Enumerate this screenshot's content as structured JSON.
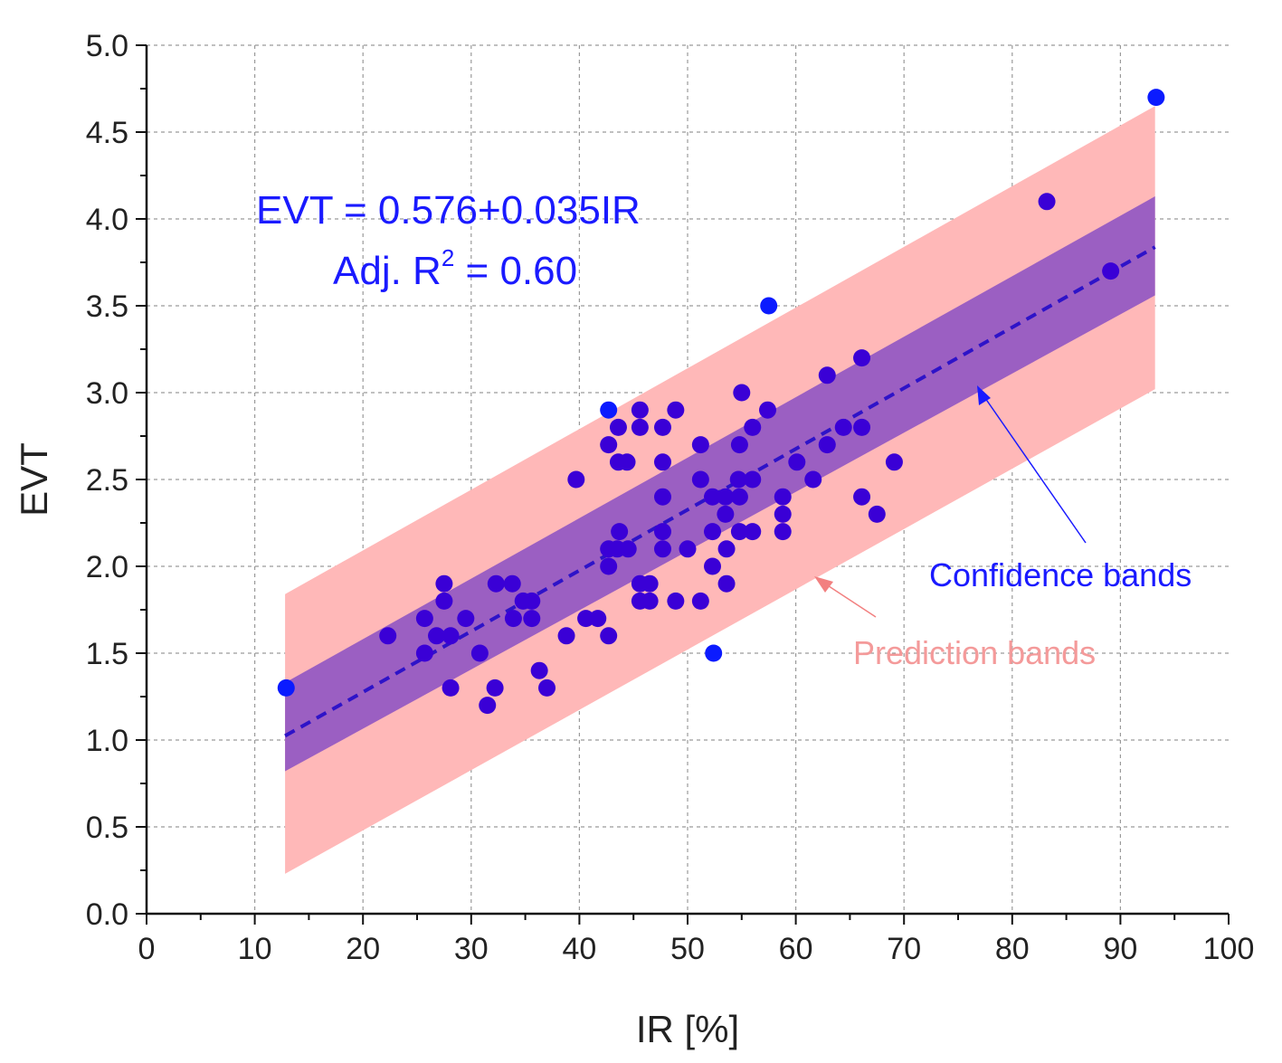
{
  "chart_data": {
    "type": "scatter",
    "xlabel": "IR [%]",
    "ylabel": "EVT",
    "xlim": [
      0,
      100
    ],
    "ylim": [
      0.0,
      5.0
    ],
    "x_ticks": [
      "0",
      "10",
      "20",
      "30",
      "40",
      "50",
      "60",
      "70",
      "80",
      "90",
      "100"
    ],
    "y_ticks": [
      "0.0",
      "0.5",
      "1.0",
      "1.5",
      "2.0",
      "2.5",
      "3.0",
      "3.5",
      "4.0",
      "4.5",
      "5.0"
    ],
    "grid": true,
    "colors": {
      "points": "#3a00d6",
      "outliers": "#0b1bff",
      "fit_line": "#2e13c8",
      "confidence_band": "#9b5fc2",
      "prediction_band": "#ffb8b8",
      "confidence_label": "#1a1aff",
      "prediction_label": "#f49a9a"
    },
    "fit": {
      "intercept": 0.576,
      "slope": 0.035,
      "x_range": [
        12.8,
        93.2
      ],
      "confidence_band": {
        "x": [
          12.8,
          93.2
        ],
        "lower": [
          0.82,
          3.56
        ],
        "upper": [
          1.33,
          4.13
        ]
      },
      "prediction_band": {
        "x": [
          12.8,
          93.2
        ],
        "lower": [
          0.23,
          3.02
        ],
        "upper": [
          1.84,
          4.65
        ]
      }
    },
    "equation": {
      "line1": "EVT = 0.576+0.035IR",
      "line2_prefix": "Adj. R",
      "line2_sup": "2",
      "line2_suffix": " = 0.60"
    },
    "annotations": {
      "confidence": "Confidence bands",
      "prediction": "Prediction bands"
    },
    "points": [
      [
        22.3,
        1.6
      ],
      [
        25.7,
        1.7
      ],
      [
        25.7,
        1.5
      ],
      [
        26.8,
        1.6
      ],
      [
        27.5,
        1.9
      ],
      [
        27.5,
        1.8
      ],
      [
        28.1,
        1.6
      ],
      [
        28.1,
        1.3
      ],
      [
        29.5,
        1.7
      ],
      [
        30.8,
        1.5
      ],
      [
        31.5,
        1.2
      ],
      [
        32.2,
        1.3
      ],
      [
        32.3,
        1.9
      ],
      [
        33.8,
        1.9
      ],
      [
        33.9,
        1.7
      ],
      [
        34.8,
        1.8
      ],
      [
        35.6,
        1.8
      ],
      [
        35.6,
        1.7
      ],
      [
        36.3,
        1.4
      ],
      [
        37.0,
        1.3
      ],
      [
        38.8,
        1.6
      ],
      [
        39.7,
        2.5
      ],
      [
        40.6,
        1.7
      ],
      [
        41.7,
        1.7
      ],
      [
        42.7,
        1.6
      ],
      [
        42.7,
        2.0
      ],
      [
        42.7,
        2.1
      ],
      [
        42.7,
        2.7
      ],
      [
        43.5,
        2.1
      ],
      [
        43.6,
        2.8
      ],
      [
        43.6,
        2.6
      ],
      [
        43.7,
        2.2
      ],
      [
        44.4,
        2.6
      ],
      [
        44.5,
        2.1
      ],
      [
        45.6,
        2.9
      ],
      [
        45.6,
        2.8
      ],
      [
        45.6,
        1.9
      ],
      [
        45.6,
        1.8
      ],
      [
        46.5,
        1.9
      ],
      [
        46.5,
        1.8
      ],
      [
        47.7,
        2.8
      ],
      [
        47.7,
        2.6
      ],
      [
        47.7,
        2.4
      ],
      [
        47.7,
        2.2
      ],
      [
        47.7,
        2.1
      ],
      [
        48.9,
        2.9
      ],
      [
        48.9,
        1.8
      ],
      [
        50.0,
        2.1
      ],
      [
        51.2,
        2.7
      ],
      [
        51.2,
        2.5
      ],
      [
        51.2,
        1.8
      ],
      [
        52.3,
        2.4
      ],
      [
        52.3,
        2.2
      ],
      [
        52.3,
        2.0
      ],
      [
        53.5,
        2.4
      ],
      [
        53.5,
        2.3
      ],
      [
        53.6,
        2.1
      ],
      [
        53.6,
        1.9
      ],
      [
        54.7,
        2.5
      ],
      [
        54.8,
        2.4
      ],
      [
        55.0,
        3.0
      ],
      [
        54.8,
        2.7
      ],
      [
        54.8,
        2.2
      ],
      [
        56.0,
        2.8
      ],
      [
        56.0,
        2.5
      ],
      [
        56.0,
        2.2
      ],
      [
        57.4,
        2.9
      ],
      [
        58.8,
        2.4
      ],
      [
        58.8,
        2.3
      ],
      [
        58.8,
        2.2
      ],
      [
        60.1,
        2.6
      ],
      [
        61.6,
        2.5
      ],
      [
        62.9,
        3.1
      ],
      [
        62.9,
        2.7
      ],
      [
        64.4,
        2.8
      ],
      [
        66.1,
        3.2
      ],
      [
        66.1,
        2.8
      ],
      [
        66.1,
        2.4
      ],
      [
        67.5,
        2.3
      ],
      [
        69.1,
        2.6
      ],
      [
        83.2,
        4.1
      ],
      [
        89.1,
        3.7
      ]
    ],
    "outliers": [
      [
        12.9,
        1.3
      ],
      [
        42.7,
        2.9
      ],
      [
        52.4,
        1.5
      ],
      [
        57.5,
        3.5
      ],
      [
        93.3,
        4.7
      ]
    ]
  }
}
